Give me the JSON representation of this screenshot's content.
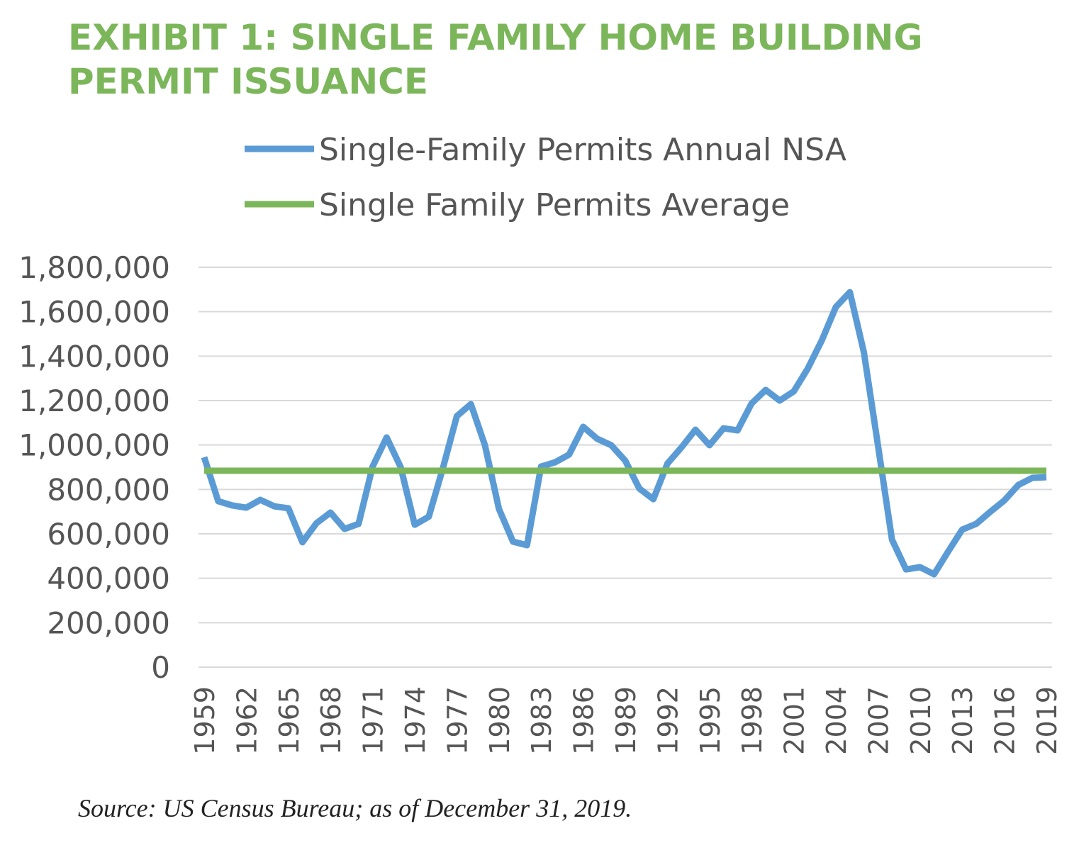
{
  "chart_data": {
    "type": "line",
    "title": "EXHIBIT 1: SINGLE FAMILY HOME BUILDING PERMIT ISSUANCE",
    "source": "Source: US Census Bureau; as of December 31, 2019.",
    "x": [
      1959,
      1960,
      1961,
      1962,
      1963,
      1964,
      1965,
      1966,
      1967,
      1968,
      1969,
      1970,
      1971,
      1972,
      1973,
      1974,
      1975,
      1976,
      1977,
      1978,
      1979,
      1980,
      1981,
      1982,
      1983,
      1984,
      1985,
      1986,
      1987,
      1988,
      1989,
      1990,
      1991,
      1992,
      1993,
      1994,
      1995,
      1996,
      1997,
      1998,
      1999,
      2000,
      2001,
      2002,
      2003,
      2004,
      2005,
      2006,
      2007,
      2008,
      2009,
      2010,
      2011,
      2012,
      2013,
      2014,
      2015,
      2016,
      2017,
      2018,
      2019
    ],
    "series": [
      {
        "name": "Single-Family Permits Annual NSA",
        "color": "#5b9bd5",
        "values": [
          945000,
          747000,
          728000,
          718000,
          753000,
          724000,
          715000,
          562000,
          648000,
          696000,
          622000,
          645000,
          903000,
          1034000,
          900000,
          641000,
          677000,
          894000,
          1130000,
          1184000,
          999000,
          712000,
          565000,
          549000,
          903000,
          922000,
          957000,
          1082000,
          1028000,
          999000,
          929000,
          804000,
          756000,
          916000,
          989000,
          1069000,
          999000,
          1075000,
          1066000,
          1187000,
          1248000,
          1200000,
          1241000,
          1344000,
          1471000,
          1621000,
          1688000,
          1417000,
          999000,
          574000,
          440000,
          450000,
          418000,
          520000,
          619000,
          645000,
          699000,
          750000,
          820000,
          852000,
          855000
        ]
      },
      {
        "name": "Single Family Permits Average",
        "color": "#7cb65a",
        "values": [
          884000,
          884000,
          884000,
          884000,
          884000,
          884000,
          884000,
          884000,
          884000,
          884000,
          884000,
          884000,
          884000,
          884000,
          884000,
          884000,
          884000,
          884000,
          884000,
          884000,
          884000,
          884000,
          884000,
          884000,
          884000,
          884000,
          884000,
          884000,
          884000,
          884000,
          884000,
          884000,
          884000,
          884000,
          884000,
          884000,
          884000,
          884000,
          884000,
          884000,
          884000,
          884000,
          884000,
          884000,
          884000,
          884000,
          884000,
          884000,
          884000,
          884000,
          884000,
          884000,
          884000,
          884000,
          884000,
          884000,
          884000,
          884000,
          884000,
          884000,
          884000
        ]
      }
    ],
    "xlim": [
      1959,
      2019
    ],
    "xticks": [
      1959,
      1962,
      1965,
      1968,
      1971,
      1974,
      1977,
      1980,
      1983,
      1986,
      1989,
      1992,
      1995,
      1998,
      2001,
      2004,
      2007,
      2010,
      2013,
      2016,
      2019
    ],
    "ylim": [
      0,
      1800000
    ],
    "yticks": [
      0,
      {
        "value": 200000,
        "label": "200,000"
      },
      {
        "value": 400000,
        "label": "400,000"
      },
      {
        "value": 600000,
        "label": "600,000"
      },
      {
        "value": 800000,
        "label": "800,000"
      },
      {
        "value": 1000000,
        "label": "1,000,000"
      },
      {
        "value": 1200000,
        "label": "1,200,000"
      },
      {
        "value": 1400000,
        "label": "1,400,000"
      },
      {
        "value": 1600000,
        "label": "1,600,000"
      },
      {
        "value": 1800000,
        "label": "1,800,000"
      }
    ],
    "grid": true
  }
}
